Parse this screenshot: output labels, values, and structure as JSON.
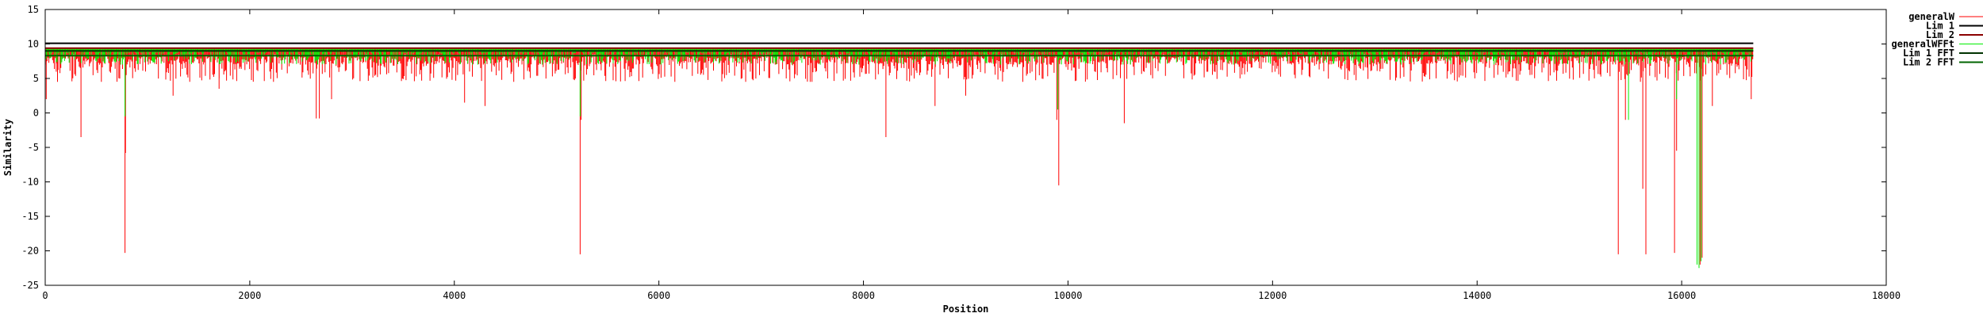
{
  "chart_data": {
    "type": "line",
    "xlabel": "Position",
    "ylabel": "Similarity",
    "xlim": [
      0,
      18000
    ],
    "ylim": [
      -25,
      15
    ],
    "xticks": [
      0,
      2000,
      4000,
      6000,
      8000,
      10000,
      12000,
      14000,
      16000,
      18000
    ],
    "yticks": [
      -25,
      -20,
      -15,
      -10,
      -5,
      0,
      5,
      10,
      15
    ],
    "grid": false,
    "legend_position": "top-right",
    "series": [
      {
        "name": "generalW",
        "style": "impulses",
        "color": "#ff0000",
        "baseline": 9.3,
        "x_range": [
          0,
          16700
        ],
        "typical_low": [
          4.5,
          8.5
        ],
        "dips": [
          {
            "x": 10,
            "y": 2.0
          },
          {
            "x": 120,
            "y": 4.5
          },
          {
            "x": 350,
            "y": -3.5
          },
          {
            "x": 780,
            "y": -20.3
          },
          {
            "x": 785,
            "y": -5.8
          },
          {
            "x": 1250,
            "y": 2.5
          },
          {
            "x": 1700,
            "y": 3.5
          },
          {
            "x": 2650,
            "y": -0.8
          },
          {
            "x": 2680,
            "y": -0.8
          },
          {
            "x": 2800,
            "y": 2.0
          },
          {
            "x": 4100,
            "y": 1.5
          },
          {
            "x": 4300,
            "y": 1.0
          },
          {
            "x": 5230,
            "y": -20.5
          },
          {
            "x": 5240,
            "y": -1.0
          },
          {
            "x": 8220,
            "y": -3.5
          },
          {
            "x": 8700,
            "y": 1.0
          },
          {
            "x": 9000,
            "y": 2.5
          },
          {
            "x": 9890,
            "y": -1.0
          },
          {
            "x": 9910,
            "y": -10.5
          },
          {
            "x": 10550,
            "y": -1.5
          },
          {
            "x": 15380,
            "y": -20.5
          },
          {
            "x": 15450,
            "y": -1.0
          },
          {
            "x": 15620,
            "y": -11.0
          },
          {
            "x": 15650,
            "y": -20.5
          },
          {
            "x": 15930,
            "y": -20.3
          },
          {
            "x": 15950,
            "y": -5.5
          },
          {
            "x": 16150,
            "y": -21.5
          },
          {
            "x": 16180,
            "y": -22.0
          },
          {
            "x": 16200,
            "y": -21.0
          },
          {
            "x": 16300,
            "y": 1.0
          },
          {
            "x": 16680,
            "y": 2.0
          }
        ]
      },
      {
        "name": "Lim 1",
        "style": "line",
        "color": "#000000",
        "y": 10.1,
        "x_range": [
          0,
          16700
        ]
      },
      {
        "name": "Lim 2",
        "style": "line",
        "color": "#8b0000",
        "y": 9.4,
        "x_range": [
          0,
          16700
        ]
      },
      {
        "name": "generalWFFt",
        "style": "impulses",
        "color": "#00ee00",
        "baseline": 9.3,
        "x_range": [
          0,
          16700
        ],
        "typical_low": [
          7.0,
          9.2
        ],
        "dips": [
          {
            "x": 780,
            "y": -0.5
          },
          {
            "x": 5230,
            "y": -0.5
          },
          {
            "x": 9900,
            "y": 0.5
          },
          {
            "x": 15480,
            "y": -1.0
          },
          {
            "x": 15950,
            "y": 2.0
          },
          {
            "x": 16150,
            "y": -22.0
          },
          {
            "x": 16170,
            "y": -22.5
          },
          {
            "x": 16190,
            "y": -21.5
          }
        ]
      },
      {
        "name": "Lim 1 FFT",
        "style": "line",
        "color": "#003300",
        "y": 9.0,
        "x_range": [
          0,
          16700
        ]
      },
      {
        "name": "Lim 2 FFT",
        "style": "line",
        "color": "#006400",
        "y": 8.3,
        "x_range": [
          0,
          16700
        ]
      }
    ]
  }
}
